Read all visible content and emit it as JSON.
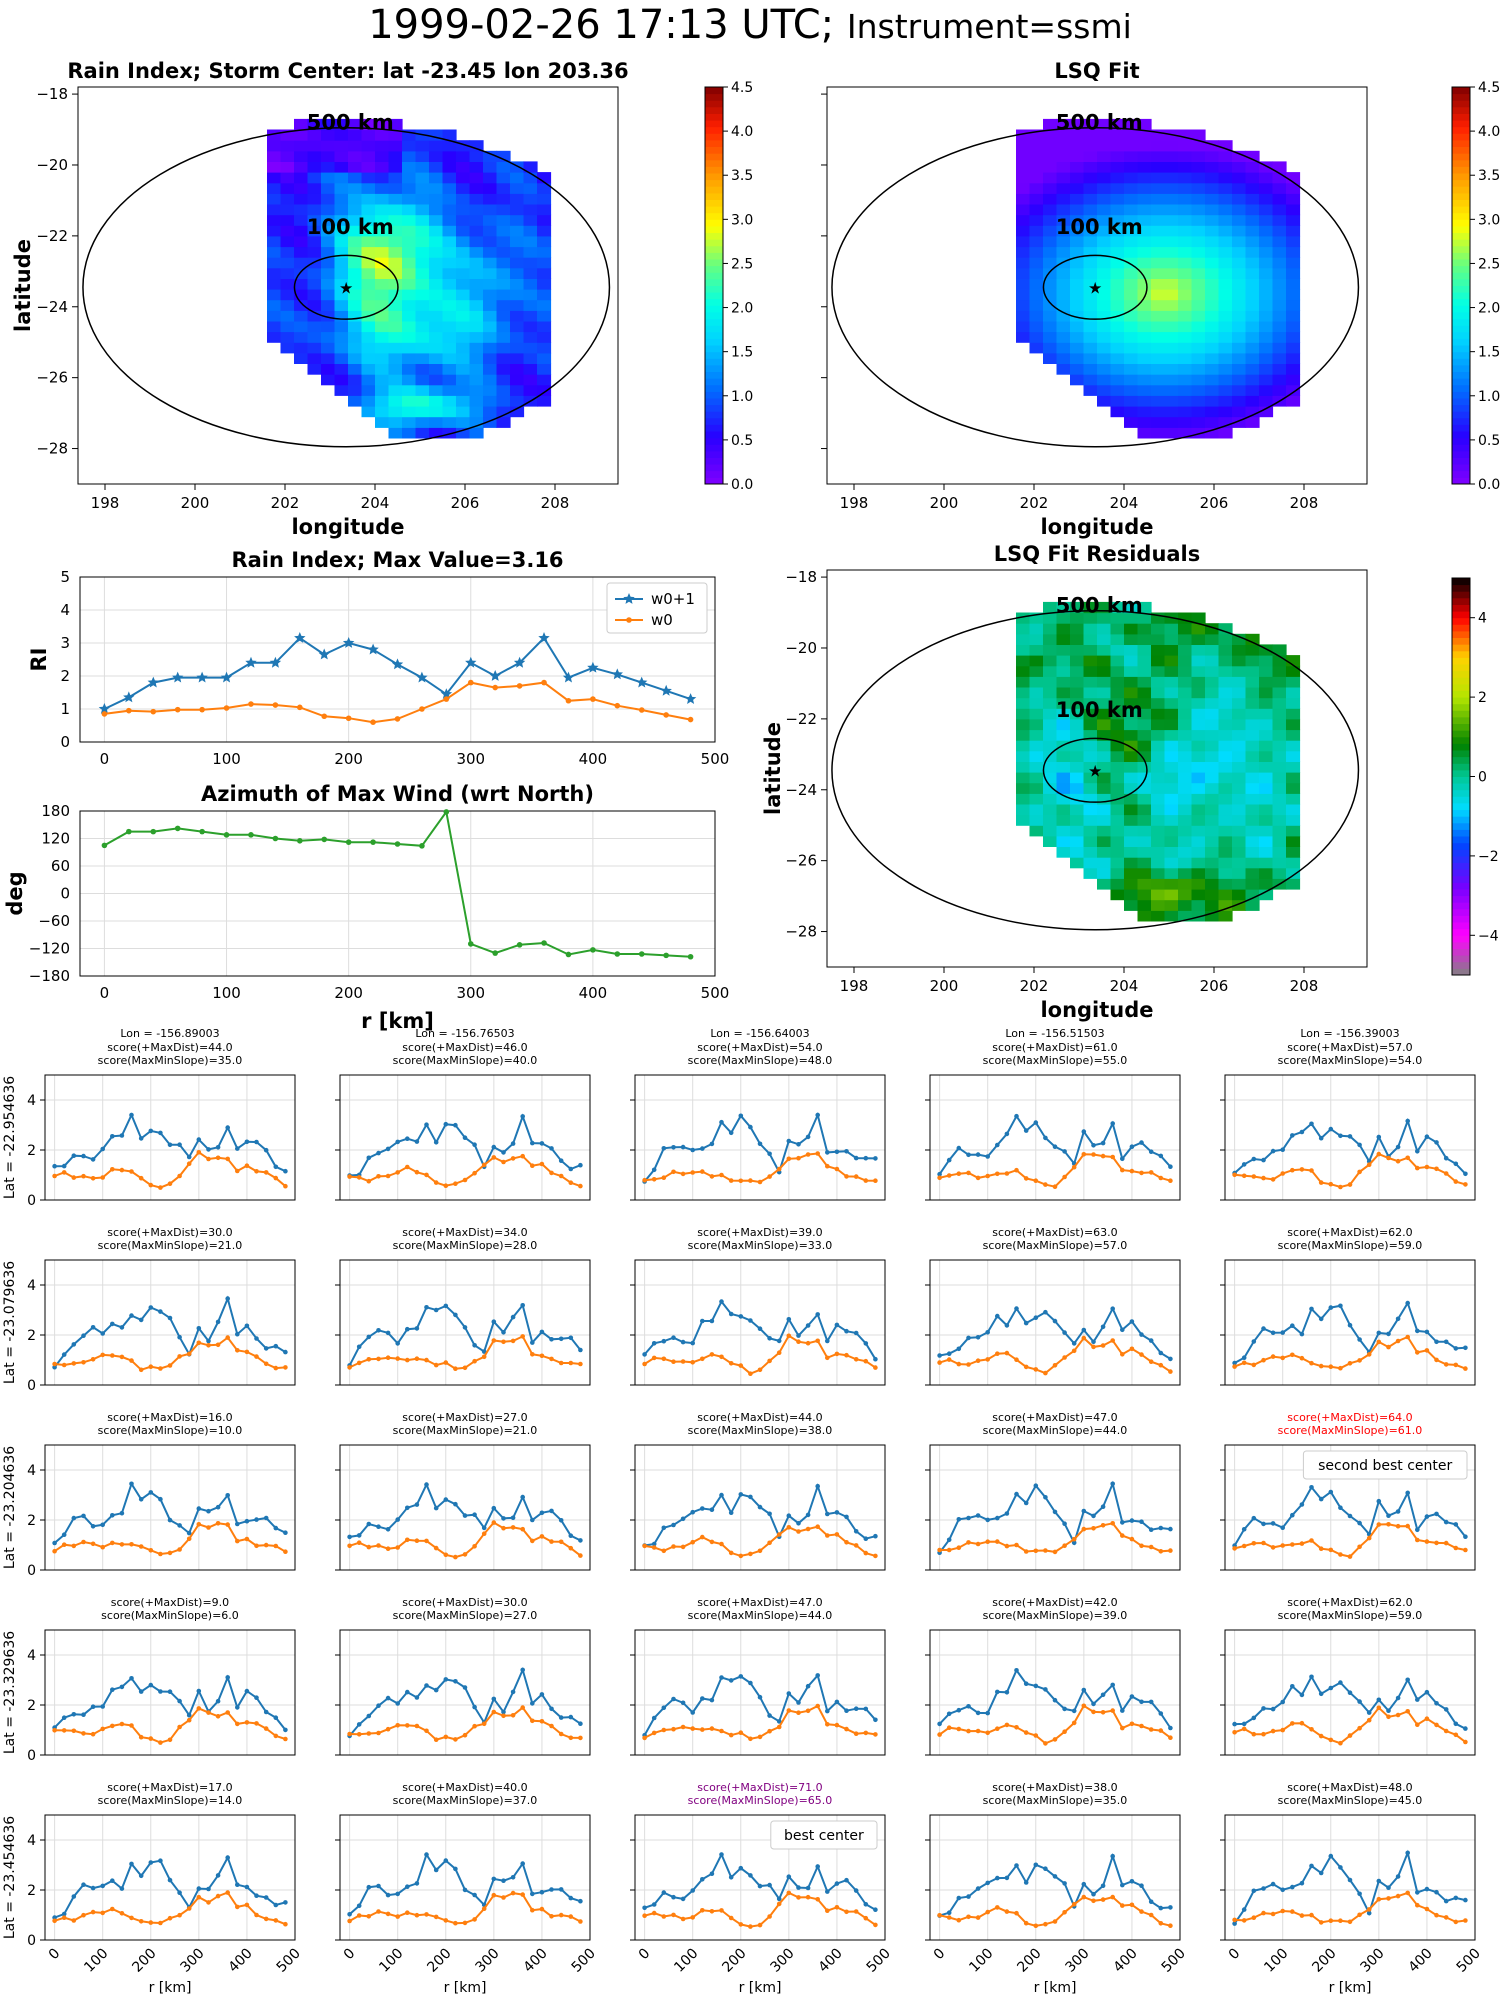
{
  "title": {
    "main": "1999-02-26 17:13 UTC;",
    "sub": "Instrument=ssmi"
  },
  "colors": {
    "series_w0p1": "#1f77b4",
    "series_w0": "#ff7f0e",
    "azimuth": "#2ca02c",
    "best_text": "#800080",
    "second_text": "#ff0000"
  },
  "chart_data": [
    {
      "type": "heatmap",
      "id": "rain",
      "title": "Rain Index; Storm Center: lat -23.45 lon 203.36",
      "xlabel": "longitude",
      "ylabel": "latitude",
      "xlim": [
        197.4,
        209.4
      ],
      "ylim": [
        -29,
        -17.8
      ],
      "xticks": [
        198,
        200,
        202,
        204,
        206,
        208
      ],
      "yticks": [
        -28,
        -26,
        -24,
        -22,
        -20,
        -18
      ],
      "colorbar": {
        "colormap": "jet-like",
        "range": [
          0,
          4.5
        ],
        "ticks": [
          "0.0",
          "0.5",
          "1.0",
          "1.5",
          "2.0",
          "2.5",
          "3.0",
          "3.5",
          "4.0",
          "4.5"
        ]
      },
      "circles": [
        {
          "label": "500 km",
          "radius_km": 500
        },
        {
          "label": "100 km",
          "radius_km": 100
        }
      ],
      "center": {
        "lat": -23.45,
        "lon": 203.36
      }
    },
    {
      "type": "heatmap",
      "id": "lsq",
      "title": "LSQ Fit",
      "xlabel": "longitude",
      "ylabel": "",
      "xlim": [
        197.4,
        209.4
      ],
      "ylim": [
        -29,
        -17.8
      ],
      "xticks": [
        198,
        200,
        202,
        204,
        206,
        208
      ],
      "yticks": [
        -28,
        -26,
        -24,
        -22,
        -20,
        -18
      ],
      "colorbar": {
        "colormap": "jet-like",
        "range": [
          0,
          4.5
        ],
        "ticks": [
          "0.0",
          "0.5",
          "1.0",
          "1.5",
          "2.0",
          "2.5",
          "3.0",
          "3.5",
          "4.0",
          "4.5"
        ]
      },
      "circles": [
        {
          "label": "500 km",
          "radius_km": 500
        },
        {
          "label": "100 km",
          "radius_km": 100
        }
      ]
    },
    {
      "type": "line",
      "id": "ri",
      "title": "Rain Index; Max Value=3.16",
      "xlabel": "",
      "ylabel": "RI",
      "xlim": [
        -20,
        500
      ],
      "ylim": [
        0,
        5
      ],
      "xticks": [
        0,
        100,
        200,
        300,
        400,
        500
      ],
      "yticks": [
        0,
        1,
        2,
        3,
        4,
        5
      ],
      "legend": "top-right",
      "x": [
        0,
        20,
        40,
        60,
        80,
        100,
        120,
        140,
        160,
        180,
        200,
        220,
        240,
        260,
        280,
        300,
        320,
        340,
        360,
        380,
        400,
        420,
        440,
        460,
        480
      ],
      "series": [
        {
          "name": "w0+1",
          "marker": "star",
          "values": [
            1.0,
            1.35,
            1.8,
            1.95,
            1.95,
            1.95,
            2.4,
            2.4,
            3.15,
            2.65,
            3.0,
            2.8,
            2.35,
            1.95,
            1.45,
            2.4,
            2.0,
            2.4,
            3.15,
            1.95,
            2.25,
            2.05,
            1.8,
            1.55,
            1.3
          ]
        },
        {
          "name": "w0",
          "marker": "dot",
          "values": [
            0.85,
            0.95,
            0.92,
            0.98,
            0.98,
            1.03,
            1.15,
            1.12,
            1.05,
            0.78,
            0.72,
            0.6,
            0.7,
            1.0,
            1.3,
            1.8,
            1.65,
            1.7,
            1.8,
            1.25,
            1.3,
            1.1,
            0.97,
            0.82,
            0.68
          ]
        }
      ]
    },
    {
      "type": "line",
      "id": "az",
      "title": "Azimuth of Max Wind (wrt North)",
      "xlabel": "r [km]",
      "ylabel": "deg",
      "xlim": [
        -20,
        500
      ],
      "ylim": [
        -180,
        180
      ],
      "xticks": [
        0,
        100,
        200,
        300,
        400,
        500
      ],
      "yticks": [
        -180,
        -120,
        -60,
        0,
        60,
        120,
        180
      ],
      "x": [
        0,
        20,
        40,
        60,
        80,
        100,
        120,
        140,
        160,
        180,
        200,
        220,
        240,
        260,
        280,
        300,
        320,
        340,
        360,
        380,
        400,
        420,
        440,
        460,
        480
      ],
      "values": [
        105,
        135,
        135,
        142,
        135,
        128,
        128,
        120,
        115,
        118,
        112,
        112,
        108,
        104,
        178,
        -110,
        -130,
        -112,
        -108,
        -133,
        -123,
        -132,
        -132,
        -135,
        -138
      ]
    },
    {
      "type": "heatmap",
      "id": "resid",
      "title": "LSQ Fit Residuals",
      "xlabel": "longitude",
      "ylabel": "latitude",
      "xlim": [
        197.4,
        209.4
      ],
      "ylim": [
        -29,
        -17.8
      ],
      "xticks": [
        198,
        200,
        202,
        204,
        206,
        208
      ],
      "yticks": [
        -28,
        -26,
        -24,
        -22,
        -20,
        -18
      ],
      "colorbar": {
        "colormap": "diverging",
        "range": [
          -5,
          5
        ],
        "ticks": [
          "4",
          "2",
          "0",
          "−2",
          "−4"
        ]
      },
      "circles": [
        {
          "label": "500 km",
          "radius_km": 500
        },
        {
          "label": "100 km",
          "radius_km": 100
        }
      ]
    }
  ],
  "grid": {
    "x": [
      0,
      20,
      40,
      60,
      80,
      100,
      120,
      140,
      160,
      180,
      200,
      220,
      240,
      260,
      280,
      300,
      320,
      340,
      360,
      380,
      400,
      420,
      440,
      460,
      480
    ],
    "xlabel": "r [km]",
    "xticks": [
      "0",
      "100",
      "200",
      "300",
      "400",
      "500"
    ],
    "yticks": [
      "0",
      "2",
      "4"
    ],
    "ylim": [
      0,
      5
    ],
    "col_lons": [
      "Lon = -156.89003",
      "Lon = -156.76503",
      "Lon = -156.64003",
      "Lon = -156.51503",
      "Lon = -156.39003"
    ],
    "row_lats": [
      "Lat = -22.954636",
      "Lat = -23.079636",
      "Lat = -23.204636",
      "Lat = -23.329636",
      "Lat = -23.454636"
    ],
    "cells": [
      [
        {
          "t1": "score(+MaxDist)=44.0",
          "t2": "score(MaxMinSlope)=35.0"
        },
        {
          "t1": "score(+MaxDist)=46.0",
          "t2": "score(MaxMinSlope)=40.0"
        },
        {
          "t1": "score(+MaxDist)=54.0",
          "t2": "score(MaxMinSlope)=48.0"
        },
        {
          "t1": "score(+MaxDist)=61.0",
          "t2": "score(MaxMinSlope)=55.0"
        },
        {
          "t1": "score(+MaxDist)=57.0",
          "t2": "score(MaxMinSlope)=54.0"
        }
      ],
      [
        {
          "t1": "score(+MaxDist)=30.0",
          "t2": "score(MaxMinSlope)=21.0"
        },
        {
          "t1": "score(+MaxDist)=34.0",
          "t2": "score(MaxMinSlope)=28.0"
        },
        {
          "t1": "score(+MaxDist)=39.0",
          "t2": "score(MaxMinSlope)=33.0"
        },
        {
          "t1": "score(+MaxDist)=63.0",
          "t2": "score(MaxMinSlope)=57.0"
        },
        {
          "t1": "score(+MaxDist)=62.0",
          "t2": "score(MaxMinSlope)=59.0"
        }
      ],
      [
        {
          "t1": "score(+MaxDist)=16.0",
          "t2": "score(MaxMinSlope)=10.0"
        },
        {
          "t1": "score(+MaxDist)=27.0",
          "t2": "score(MaxMinSlope)=21.0"
        },
        {
          "t1": "score(+MaxDist)=44.0",
          "t2": "score(MaxMinSlope)=38.0"
        },
        {
          "t1": "score(+MaxDist)=47.0",
          "t2": "score(MaxMinSlope)=44.0"
        },
        {
          "t1": "score(+MaxDist)=64.0",
          "t2": "score(MaxMinSlope)=61.0",
          "color": "#ff0000",
          "box": "second best center"
        }
      ],
      [
        {
          "t1": "score(+MaxDist)=9.0",
          "t2": "score(MaxMinSlope)=6.0"
        },
        {
          "t1": "score(+MaxDist)=30.0",
          "t2": "score(MaxMinSlope)=27.0"
        },
        {
          "t1": "score(+MaxDist)=47.0",
          "t2": "score(MaxMinSlope)=44.0"
        },
        {
          "t1": "score(+MaxDist)=42.0",
          "t2": "score(MaxMinSlope)=39.0"
        },
        {
          "t1": "score(+MaxDist)=62.0",
          "t2": "score(MaxMinSlope)=59.0"
        }
      ],
      [
        {
          "t1": "score(+MaxDist)=17.0",
          "t2": "score(MaxMinSlope)=14.0"
        },
        {
          "t1": "score(+MaxDist)=40.0",
          "t2": "score(MaxMinSlope)=37.0"
        },
        {
          "t1": "score(+MaxDist)=71.0",
          "t2": "score(MaxMinSlope)=65.0",
          "color": "#800080",
          "box": "best center"
        },
        {
          "t1": "score(+MaxDist)=38.0",
          "t2": "score(MaxMinSlope)=35.0"
        },
        {
          "t1": "score(+MaxDist)=48.0",
          "t2": "score(MaxMinSlope)=45.0"
        }
      ]
    ]
  }
}
